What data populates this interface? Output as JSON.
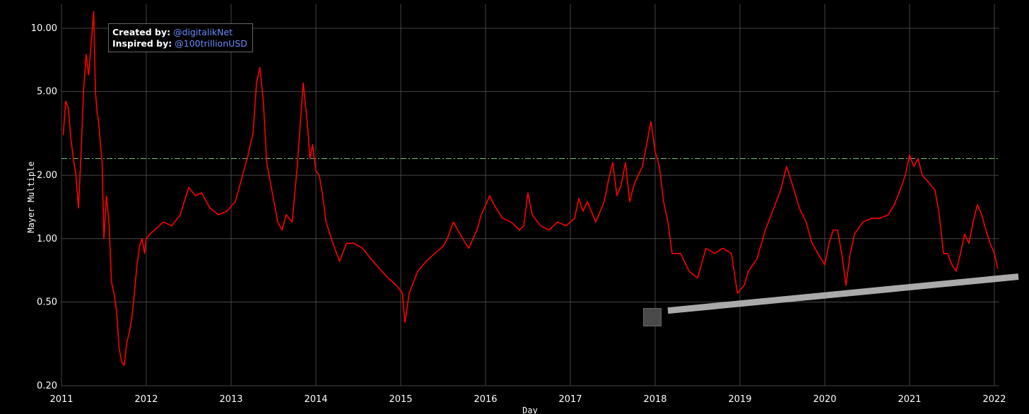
{
  "credits": {
    "created_label": "Created by:",
    "created_value": "@digitalikNet",
    "inspired_label": "Inspired by:",
    "inspired_value": "@100trillionUSD",
    "link_color": "#6b8cff"
  },
  "chart_data": {
    "type": "line",
    "title": "",
    "xlabel": "Day",
    "ylabel": "Mayer Multiple",
    "y_scale": "log",
    "ylim": [
      0.2,
      13
    ],
    "xlim": [
      2011.0,
      2022.05
    ],
    "x_ticks": [
      "2011",
      "2012",
      "2013",
      "2014",
      "2015",
      "2016",
      "2017",
      "2018",
      "2019",
      "2020",
      "2021",
      "2022"
    ],
    "y_ticks": [
      "0.20",
      "0.50",
      "1.00",
      "2.00",
      "5.00",
      "10.00"
    ],
    "y_tick_values": [
      0.2,
      0.5,
      1.0,
      2.0,
      5.0,
      10.0
    ],
    "grid": true,
    "reference_line": {
      "value": 2.4,
      "color": "#7bc27b",
      "style": "dash-dot"
    },
    "trend_line": {
      "x": [
        2018.15,
        2022.3
      ],
      "y": [
        0.455,
        0.66
      ],
      "color": "#aaaaaa"
    },
    "series": [
      {
        "color": "#ff0000",
        "x": [
          2011.02,
          2011.05,
          2011.08,
          2011.11,
          2011.14,
          2011.17,
          2011.2,
          2011.23,
          2011.26,
          2011.29,
          2011.32,
          2011.35,
          2011.38,
          2011.4,
          2011.42,
          2011.44,
          2011.46,
          2011.48,
          2011.5,
          2011.53,
          2011.56,
          2011.59,
          2011.62,
          2011.65,
          2011.68,
          2011.71,
          2011.74,
          2011.77,
          2011.8,
          2011.83,
          2011.86,
          2011.89,
          2011.92,
          2011.95,
          2011.98,
          2012.0,
          2012.04,
          2012.1,
          2012.2,
          2012.3,
          2012.4,
          2012.5,
          2012.58,
          2012.65,
          2012.75,
          2012.85,
          2012.95,
          2013.05,
          2013.12,
          2013.2,
          2013.26,
          2013.3,
          2013.34,
          2013.38,
          2013.42,
          2013.48,
          2013.55,
          2013.6,
          2013.65,
          2013.72,
          2013.78,
          2013.85,
          2013.9,
          2013.93,
          2013.96,
          2014.0,
          2014.04,
          2014.08,
          2014.12,
          2014.2,
          2014.28,
          2014.36,
          2014.45,
          2014.55,
          2014.65,
          2014.75,
          2014.85,
          2014.95,
          2015.02,
          2015.05,
          2015.1,
          2015.2,
          2015.3,
          2015.4,
          2015.5,
          2015.55,
          2015.62,
          2015.7,
          2015.8,
          2015.9,
          2015.95,
          2016.05,
          2016.1,
          2016.2,
          2016.3,
          2016.4,
          2016.45,
          2016.5,
          2016.55,
          2016.65,
          2016.75,
          2016.85,
          2016.95,
          2017.05,
          2017.1,
          2017.15,
          2017.2,
          2017.3,
          2017.4,
          2017.45,
          2017.5,
          2017.55,
          2017.6,
          2017.65,
          2017.7,
          2017.75,
          2017.8,
          2017.85,
          2017.9,
          2017.95,
          2018.0,
          2018.05,
          2018.1,
          2018.15,
          2018.2,
          2018.3,
          2018.4,
          2018.5,
          2018.6,
          2018.7,
          2018.8,
          2018.9,
          2018.97,
          2019.05,
          2019.1,
          2019.2,
          2019.3,
          2019.4,
          2019.48,
          2019.55,
          2019.62,
          2019.7,
          2019.78,
          2019.85,
          2019.92,
          2020.0,
          2020.05,
          2020.1,
          2020.15,
          2020.2,
          2020.25,
          2020.3,
          2020.35,
          2020.45,
          2020.55,
          2020.65,
          2020.75,
          2020.82,
          2020.9,
          2020.95,
          2021.0,
          2021.05,
          2021.1,
          2021.15,
          2021.2,
          2021.25,
          2021.3,
          2021.35,
          2021.4,
          2021.45,
          2021.5,
          2021.55,
          2021.6,
          2021.65,
          2021.7,
          2021.75,
          2021.8,
          2021.85,
          2021.9,
          2021.95,
          2022.0,
          2022.04
        ],
        "y": [
          3.1,
          4.5,
          4.2,
          3.0,
          2.4,
          2.0,
          1.4,
          2.5,
          5.0,
          7.5,
          6.0,
          8.5,
          12.0,
          5.0,
          4.0,
          3.5,
          2.8,
          2.3,
          1.0,
          1.6,
          1.2,
          0.62,
          0.55,
          0.45,
          0.3,
          0.26,
          0.25,
          0.32,
          0.36,
          0.42,
          0.55,
          0.75,
          0.92,
          1.0,
          0.85,
          1.0,
          1.05,
          1.1,
          1.2,
          1.15,
          1.3,
          1.75,
          1.6,
          1.65,
          1.4,
          1.3,
          1.35,
          1.5,
          1.9,
          2.5,
          3.2,
          5.5,
          6.5,
          4.5,
          2.3,
          1.7,
          1.2,
          1.1,
          1.3,
          1.2,
          2.2,
          5.5,
          3.5,
          2.4,
          2.8,
          2.1,
          2.0,
          1.6,
          1.2,
          0.95,
          0.78,
          0.95,
          0.95,
          0.9,
          0.8,
          0.72,
          0.65,
          0.6,
          0.55,
          0.4,
          0.55,
          0.7,
          0.78,
          0.85,
          0.92,
          1.0,
          1.2,
          1.05,
          0.9,
          1.1,
          1.3,
          1.6,
          1.45,
          1.25,
          1.2,
          1.1,
          1.15,
          1.65,
          1.3,
          1.15,
          1.1,
          1.2,
          1.15,
          1.25,
          1.55,
          1.35,
          1.5,
          1.2,
          1.5,
          1.9,
          2.3,
          1.6,
          1.8,
          2.3,
          1.5,
          1.8,
          2.0,
          2.2,
          2.8,
          3.6,
          2.6,
          2.2,
          1.5,
          1.2,
          0.85,
          0.85,
          0.7,
          0.65,
          0.9,
          0.85,
          0.9,
          0.85,
          0.55,
          0.6,
          0.7,
          0.8,
          1.1,
          1.4,
          1.7,
          2.2,
          1.8,
          1.4,
          1.2,
          0.95,
          0.85,
          0.75,
          0.95,
          1.1,
          1.1,
          0.85,
          0.6,
          0.85,
          1.05,
          1.2,
          1.25,
          1.25,
          1.3,
          1.45,
          1.75,
          2.0,
          2.5,
          2.2,
          2.4,
          2.0,
          1.9,
          1.8,
          1.7,
          1.3,
          0.85,
          0.85,
          0.75,
          0.7,
          0.85,
          1.05,
          0.95,
          1.2,
          1.45,
          1.3,
          1.1,
          0.95,
          0.85,
          0.72
        ]
      }
    ]
  }
}
